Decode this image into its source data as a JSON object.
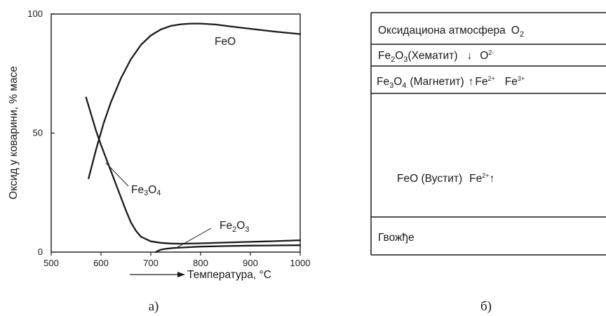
{
  "chart_data": {
    "type": "line",
    "xlabel": "Температура, °C",
    "ylabel": "Оксид у коварини, % масе",
    "xlim": [
      500,
      1000
    ],
    "ylim": [
      0,
      100
    ],
    "xticks": [
      "500",
      "600",
      "700",
      "800",
      "900",
      "1000"
    ],
    "yticks": [
      "0",
      "50",
      "100"
    ],
    "grid": false,
    "series": [
      {
        "name": "FeO",
        "x": [
          575,
          590,
          605,
          620,
          640,
          660,
          680,
          700,
          720,
          740,
          760,
          780,
          800,
          830,
          860,
          900,
          950,
          1000
        ],
        "y": [
          31,
          43,
          54,
          63,
          73,
          81,
          87,
          91,
          93.5,
          95,
          95.7,
          96,
          96,
          95.6,
          94.8,
          93.8,
          92.6,
          91.6
        ]
      },
      {
        "name": "Fe3O4",
        "x": [
          570,
          580,
          590,
          600,
          610,
          620,
          630,
          640,
          650,
          660,
          670,
          680,
          700,
          720,
          740,
          760,
          800,
          850,
          900,
          950,
          1000
        ],
        "y": [
          65,
          58,
          51,
          45,
          39.5,
          34,
          28.5,
          23,
          17.5,
          12.5,
          9,
          6.5,
          4.5,
          3.9,
          3.6,
          3.5,
          3.7,
          4,
          4.3,
          4.6,
          5
        ]
      },
      {
        "name": "Fe2O3",
        "x": [
          710,
          715,
          720,
          730,
          745,
          760,
          780,
          800,
          850,
          900,
          950,
          1000
        ],
        "y": [
          0,
          0.6,
          1,
          1.4,
          1.7,
          1.9,
          2.1,
          2.3,
          2.55,
          2.7,
          2.8,
          2.9
        ]
      }
    ],
    "labels": {
      "feo": "FeO",
      "fe3o4_base1": "Fe",
      "fe3o4_sub1": "3",
      "fe3o4_base2": "O",
      "fe3o4_sub2": "4",
      "fe2o3_base1": "Fe",
      "fe2o3_sub1": "2",
      "fe2o3_base2": "O",
      "fe2o3_sub2": "3"
    }
  },
  "captions": {
    "a": "а)",
    "b": "б)"
  },
  "layers": {
    "atmosphere": {
      "text": "Оксидациона атмосфера",
      "o": "O",
      "o_sub": "2"
    },
    "hematite": {
      "fe": "Fe",
      "fe_sub": "2",
      "o": "O",
      "o_sub": "3",
      "name": "(Хематит)",
      "arrow": "↓",
      "ion": "O",
      "ion_sup": "2-"
    },
    "magnetite": {
      "fe": "Fe",
      "fe_sub": "3",
      "o": "O",
      "o_sub": "4",
      "name": "(Магнетит)",
      "arrow": "↑",
      "ion1": "Fe",
      "ion1_sup": "2+",
      "ion2": "Fe",
      "ion2_sup": "3+"
    },
    "wustite": {
      "text": "FeO  (Вустит)",
      "ion": "Fe",
      "ion_sup": "2+",
      "arrow": "↑"
    },
    "iron": {
      "text": "Гвожђе"
    }
  }
}
